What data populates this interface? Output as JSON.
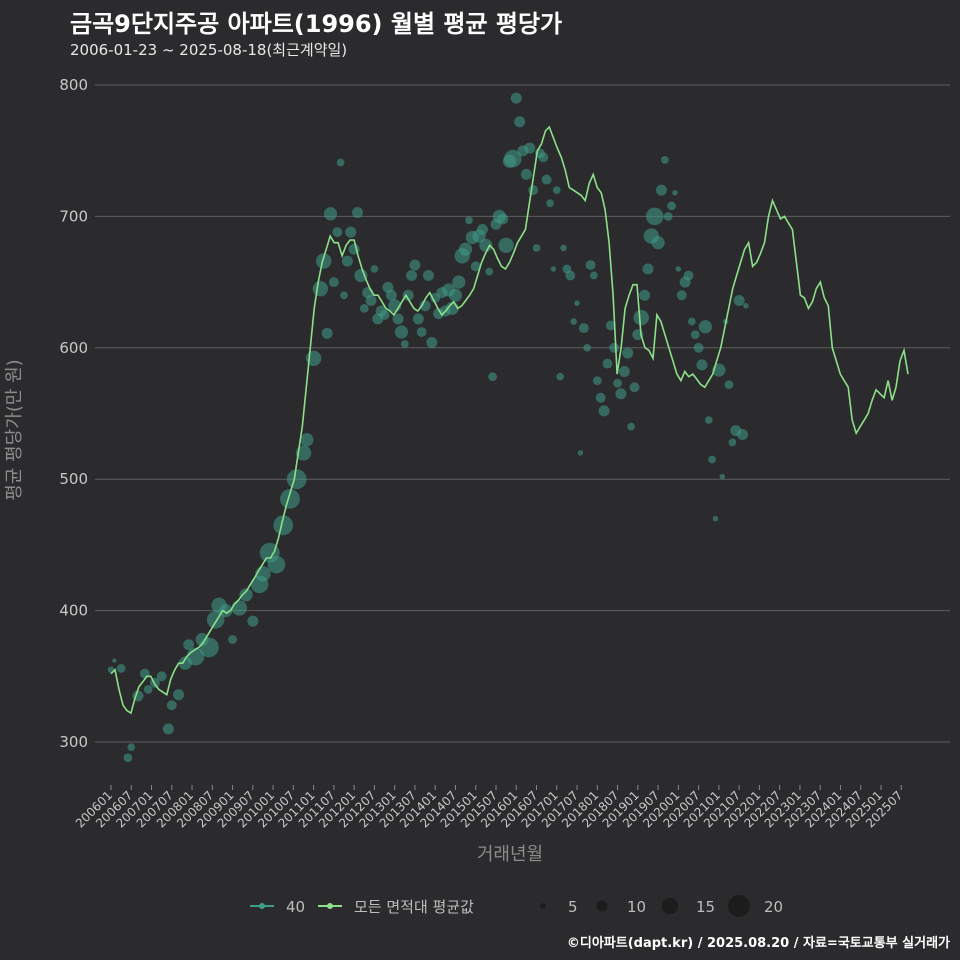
{
  "title": "금곡9단지주공 아파트(1996) 월별 평균 평당가",
  "subtitle": "2006-01-23 ~ 2025-08-18(최근계약일)",
  "caption": "©디아파트(dapt.kr) / 2025.08.20 / 자료=국토교통부 실거래가",
  "colors": {
    "background": "#2b2b2d",
    "grid": "#5e5e5e",
    "points": "#3f9d8a",
    "line": "#8de08a"
  },
  "chart_data": {
    "type": "line",
    "title": "금곡9단지주공 아파트(1996) 월별 평균 평당가",
    "xlabel": "거래년월",
    "ylabel": "평균 평당가(만 원)",
    "ylim": [
      270,
      810
    ],
    "yticks": [
      300,
      400,
      500,
      600,
      700,
      800
    ],
    "grid": true,
    "x_ticks": [
      "200601",
      "200607",
      "200701",
      "200707",
      "200801",
      "200807",
      "200901",
      "200907",
      "201001",
      "201007",
      "201101",
      "201107",
      "201201",
      "201207",
      "201301",
      "201307",
      "201401",
      "201407",
      "201501",
      "201507",
      "201601",
      "201607",
      "201701",
      "201707",
      "201801",
      "201807",
      "201901",
      "201907",
      "202001",
      "202007",
      "202101",
      "202107",
      "202201",
      "202207",
      "202301",
      "202307",
      "202401",
      "202407",
      "202501",
      "202507"
    ],
    "legend": {
      "position": "bottom",
      "series_entries": [
        "40",
        "모든 면적대 평균값"
      ],
      "size_entries": [
        5,
        10,
        15,
        20
      ]
    },
    "series": [
      {
        "name": "모든 면적대 평균값",
        "x_start": "200601",
        "values": [
          352,
          355,
          340,
          328,
          324,
          322,
          333,
          342,
          346,
          350,
          350,
          344,
          340,
          338,
          336,
          348,
          355,
          360,
          360,
          365,
          368,
          370,
          372,
          375,
          380,
          385,
          390,
          395,
          400,
          398,
          400,
          405,
          408,
          412,
          415,
          420,
          425,
          430,
          435,
          440,
          440,
          445,
          455,
          468,
          480,
          490,
          500,
          520,
          540,
          570,
          600,
          630,
          650,
          665,
          675,
          685,
          680,
          680,
          670,
          678,
          682,
          682,
          670,
          660,
          652,
          645,
          640,
          640,
          635,
          630,
          628,
          625,
          630,
          635,
          640,
          635,
          630,
          628,
          632,
          638,
          642,
          636,
          630,
          625,
          628,
          632,
          635,
          630,
          632,
          636,
          640,
          645,
          655,
          665,
          672,
          678,
          675,
          668,
          662,
          660,
          665,
          672,
          680,
          685,
          690,
          710,
          730,
          750,
          755,
          765,
          768,
          760,
          752,
          745,
          735,
          722,
          720,
          718,
          716,
          712,
          725,
          732,
          722,
          718,
          705,
          680,
          640,
          580,
          600,
          630,
          640,
          648,
          648,
          610,
          600,
          598,
          592,
          625,
          620,
          610,
          600,
          590,
          580,
          575,
          582,
          578,
          580,
          576,
          572,
          570,
          575,
          580,
          590,
          600,
          615,
          630,
          645,
          655,
          665,
          675,
          680,
          662,
          665,
          672,
          680,
          700,
          712,
          705,
          698,
          700,
          695,
          690,
          665,
          640,
          638,
          630,
          635,
          645,
          650,
          638,
          632,
          600,
          590,
          580,
          575,
          570,
          545,
          535,
          540,
          545,
          550,
          560,
          568,
          565,
          562,
          575,
          560,
          570,
          590,
          598,
          580
        ]
      }
    ],
    "scatter": [
      {
        "x": "200601",
        "y": 355,
        "size": 6
      },
      {
        "x": "200602",
        "y": 362,
        "size": 4
      },
      {
        "x": "200604",
        "y": 356,
        "size": 8
      },
      {
        "x": "200606",
        "y": 288,
        "size": 8
      },
      {
        "x": "200607",
        "y": 296,
        "size": 7
      },
      {
        "x": "200609",
        "y": 335,
        "size": 10
      },
      {
        "x": "200611",
        "y": 352,
        "size": 9
      },
      {
        "x": "200612",
        "y": 340,
        "size": 8
      },
      {
        "x": "200702",
        "y": 345,
        "size": 9
      },
      {
        "x": "200704",
        "y": 350,
        "size": 9
      },
      {
        "x": "200706",
        "y": 310,
        "size": 10
      },
      {
        "x": "200707",
        "y": 328,
        "size": 9
      },
      {
        "x": "200709",
        "y": 336,
        "size": 10
      },
      {
        "x": "200711",
        "y": 360,
        "size": 12
      },
      {
        "x": "200712",
        "y": 374,
        "size": 10
      },
      {
        "x": "200802",
        "y": 365,
        "size": 16
      },
      {
        "x": "200804",
        "y": 378,
        "size": 12
      },
      {
        "x": "200806",
        "y": 372,
        "size": 18
      },
      {
        "x": "200808",
        "y": 393,
        "size": 16
      },
      {
        "x": "200809",
        "y": 404,
        "size": 14
      },
      {
        "x": "200811",
        "y": 400,
        "size": 12
      },
      {
        "x": "200901",
        "y": 378,
        "size": 8
      },
      {
        "x": "200903",
        "y": 402,
        "size": 14
      },
      {
        "x": "200905",
        "y": 412,
        "size": 12
      },
      {
        "x": "200907",
        "y": 392,
        "size": 10
      },
      {
        "x": "200909",
        "y": 420,
        "size": 16
      },
      {
        "x": "200910",
        "y": 428,
        "size": 14
      },
      {
        "x": "200912",
        "y": 444,
        "size": 18
      },
      {
        "x": "201002",
        "y": 435,
        "size": 16
      },
      {
        "x": "201004",
        "y": 465,
        "size": 18
      },
      {
        "x": "201006",
        "y": 485,
        "size": 18
      },
      {
        "x": "201008",
        "y": 500,
        "size": 18
      },
      {
        "x": "201010",
        "y": 520,
        "size": 14
      },
      {
        "x": "201011",
        "y": 530,
        "size": 12
      },
      {
        "x": "201101",
        "y": 592,
        "size": 14
      },
      {
        "x": "201103",
        "y": 645,
        "size": 14
      },
      {
        "x": "201104",
        "y": 666,
        "size": 14
      },
      {
        "x": "201105",
        "y": 611,
        "size": 10
      },
      {
        "x": "201106",
        "y": 702,
        "size": 12
      },
      {
        "x": "201107",
        "y": 650,
        "size": 9
      },
      {
        "x": "201108",
        "y": 688,
        "size": 9
      },
      {
        "x": "201109",
        "y": 741,
        "size": 7
      },
      {
        "x": "201110",
        "y": 640,
        "size": 7
      },
      {
        "x": "201111",
        "y": 666,
        "size": 10
      },
      {
        "x": "201112",
        "y": 688,
        "size": 10
      },
      {
        "x": "201201",
        "y": 675,
        "size": 10
      },
      {
        "x": "201202",
        "y": 703,
        "size": 10
      },
      {
        "x": "201203",
        "y": 655,
        "size": 12
      },
      {
        "x": "201204",
        "y": 630,
        "size": 8
      },
      {
        "x": "201205",
        "y": 642,
        "size": 10
      },
      {
        "x": "201206",
        "y": 636,
        "size": 10
      },
      {
        "x": "201207",
        "y": 660,
        "size": 7
      },
      {
        "x": "201208",
        "y": 622,
        "size": 10
      },
      {
        "x": "201209",
        "y": 628,
        "size": 10
      },
      {
        "x": "201210",
        "y": 625,
        "size": 9
      },
      {
        "x": "201211",
        "y": 646,
        "size": 10
      },
      {
        "x": "201212",
        "y": 640,
        "size": 10
      },
      {
        "x": "201301",
        "y": 632,
        "size": 12
      },
      {
        "x": "201302",
        "y": 622,
        "size": 10
      },
      {
        "x": "201303",
        "y": 612,
        "size": 12
      },
      {
        "x": "201304",
        "y": 603,
        "size": 7
      },
      {
        "x": "201305",
        "y": 640,
        "size": 10
      },
      {
        "x": "201306",
        "y": 655,
        "size": 10
      },
      {
        "x": "201307",
        "y": 663,
        "size": 10
      },
      {
        "x": "201308",
        "y": 622,
        "size": 10
      },
      {
        "x": "201309",
        "y": 612,
        "size": 9
      },
      {
        "x": "201310",
        "y": 632,
        "size": 10
      },
      {
        "x": "201311",
        "y": 655,
        "size": 10
      },
      {
        "x": "201312",
        "y": 604,
        "size": 10
      },
      {
        "x": "201401",
        "y": 638,
        "size": 9
      },
      {
        "x": "201402",
        "y": 626,
        "size": 10
      },
      {
        "x": "201403",
        "y": 642,
        "size": 10
      },
      {
        "x": "201404",
        "y": 628,
        "size": 10
      },
      {
        "x": "201405",
        "y": 644,
        "size": 12
      },
      {
        "x": "201406",
        "y": 630,
        "size": 12
      },
      {
        "x": "201407",
        "y": 640,
        "size": 12
      },
      {
        "x": "201408",
        "y": 650,
        "size": 12
      },
      {
        "x": "201409",
        "y": 670,
        "size": 14
      },
      {
        "x": "201410",
        "y": 675,
        "size": 12
      },
      {
        "x": "201411",
        "y": 697,
        "size": 7
      },
      {
        "x": "201412",
        "y": 684,
        "size": 12
      },
      {
        "x": "201501",
        "y": 662,
        "size": 9
      },
      {
        "x": "201502",
        "y": 685,
        "size": 12
      },
      {
        "x": "201503",
        "y": 690,
        "size": 10
      },
      {
        "x": "201504",
        "y": 678,
        "size": 12
      },
      {
        "x": "201505",
        "y": 658,
        "size": 7
      },
      {
        "x": "201506",
        "y": 578,
        "size": 8
      },
      {
        "x": "201507",
        "y": 694,
        "size": 10
      },
      {
        "x": "201508",
        "y": 700,
        "size": 12
      },
      {
        "x": "201509",
        "y": 698,
        "size": 10
      },
      {
        "x": "201510",
        "y": 678,
        "size": 14
      },
      {
        "x": "201511",
        "y": 742,
        "size": 12
      },
      {
        "x": "201512",
        "y": 744,
        "size": 16
      },
      {
        "x": "201601",
        "y": 790,
        "size": 10
      },
      {
        "x": "201602",
        "y": 772,
        "size": 10
      },
      {
        "x": "201603",
        "y": 750,
        "size": 10
      },
      {
        "x": "201604",
        "y": 732,
        "size": 10
      },
      {
        "x": "201605",
        "y": 752,
        "size": 10
      },
      {
        "x": "201606",
        "y": 720,
        "size": 9
      },
      {
        "x": "201607",
        "y": 676,
        "size": 7
      },
      {
        "x": "201608",
        "y": 748,
        "size": 9
      },
      {
        "x": "201609",
        "y": 745,
        "size": 9
      },
      {
        "x": "201610",
        "y": 728,
        "size": 9
      },
      {
        "x": "201611",
        "y": 710,
        "size": 7
      },
      {
        "x": "201612",
        "y": 660,
        "size": 5
      },
      {
        "x": "201701",
        "y": 720,
        "size": 7
      },
      {
        "x": "201702",
        "y": 578,
        "size": 7
      },
      {
        "x": "201703",
        "y": 676,
        "size": 6
      },
      {
        "x": "201704",
        "y": 660,
        "size": 8
      },
      {
        "x": "201705",
        "y": 655,
        "size": 9
      },
      {
        "x": "201706",
        "y": 620,
        "size": 6
      },
      {
        "x": "201707",
        "y": 634,
        "size": 5
      },
      {
        "x": "201708",
        "y": 520,
        "size": 5
      },
      {
        "x": "201709",
        "y": 615,
        "size": 9
      },
      {
        "x": "201710",
        "y": 600,
        "size": 7
      },
      {
        "x": "201711",
        "y": 663,
        "size": 9
      },
      {
        "x": "201712",
        "y": 655,
        "size": 7
      },
      {
        "x": "201801",
        "y": 575,
        "size": 8
      },
      {
        "x": "201802",
        "y": 562,
        "size": 9
      },
      {
        "x": "201803",
        "y": 552,
        "size": 10
      },
      {
        "x": "201804",
        "y": 588,
        "size": 9
      },
      {
        "x": "201805",
        "y": 617,
        "size": 9
      },
      {
        "x": "201806",
        "y": 600,
        "size": 9
      },
      {
        "x": "201807",
        "y": 573,
        "size": 8
      },
      {
        "x": "201808",
        "y": 565,
        "size": 10
      },
      {
        "x": "201809",
        "y": 582,
        "size": 10
      },
      {
        "x": "201810",
        "y": 596,
        "size": 10
      },
      {
        "x": "201811",
        "y": 540,
        "size": 7
      },
      {
        "x": "201812",
        "y": 570,
        "size": 9
      },
      {
        "x": "201901",
        "y": 610,
        "size": 10
      },
      {
        "x": "201902",
        "y": 623,
        "size": 14
      },
      {
        "x": "201903",
        "y": 640,
        "size": 10
      },
      {
        "x": "201904",
        "y": 660,
        "size": 10
      },
      {
        "x": "201905",
        "y": 685,
        "size": 14
      },
      {
        "x": "201906",
        "y": 700,
        "size": 16
      },
      {
        "x": "201907",
        "y": 680,
        "size": 12
      },
      {
        "x": "201908",
        "y": 720,
        "size": 10
      },
      {
        "x": "201909",
        "y": 743,
        "size": 7
      },
      {
        "x": "201910",
        "y": 700,
        "size": 8
      },
      {
        "x": "201911",
        "y": 708,
        "size": 8
      },
      {
        "x": "201912",
        "y": 718,
        "size": 5
      },
      {
        "x": "202001",
        "y": 660,
        "size": 5
      },
      {
        "x": "202002",
        "y": 640,
        "size": 9
      },
      {
        "x": "202003",
        "y": 650,
        "size": 10
      },
      {
        "x": "202004",
        "y": 655,
        "size": 9
      },
      {
        "x": "202005",
        "y": 620,
        "size": 7
      },
      {
        "x": "202006",
        "y": 610,
        "size": 8
      },
      {
        "x": "202007",
        "y": 600,
        "size": 9
      },
      {
        "x": "202008",
        "y": 587,
        "size": 10
      },
      {
        "x": "202009",
        "y": 616,
        "size": 12
      },
      {
        "x": "202010",
        "y": 545,
        "size": 7
      },
      {
        "x": "202011",
        "y": 515,
        "size": 7
      },
      {
        "x": "202012",
        "y": 470,
        "size": 5
      },
      {
        "x": "202101",
        "y": 583,
        "size": 12
      },
      {
        "x": "202102",
        "y": 502,
        "size": 5
      },
      {
        "x": "202103",
        "y": 620,
        "size": 5
      },
      {
        "x": "202104",
        "y": 572,
        "size": 8
      },
      {
        "x": "202105",
        "y": 528,
        "size": 7
      },
      {
        "x": "202106",
        "y": 537,
        "size": 10
      },
      {
        "x": "202107",
        "y": 636,
        "size": 10
      },
      {
        "x": "202108",
        "y": 534,
        "size": 10
      },
      {
        "x": "202109",
        "y": 632,
        "size": 5
      }
    ]
  }
}
